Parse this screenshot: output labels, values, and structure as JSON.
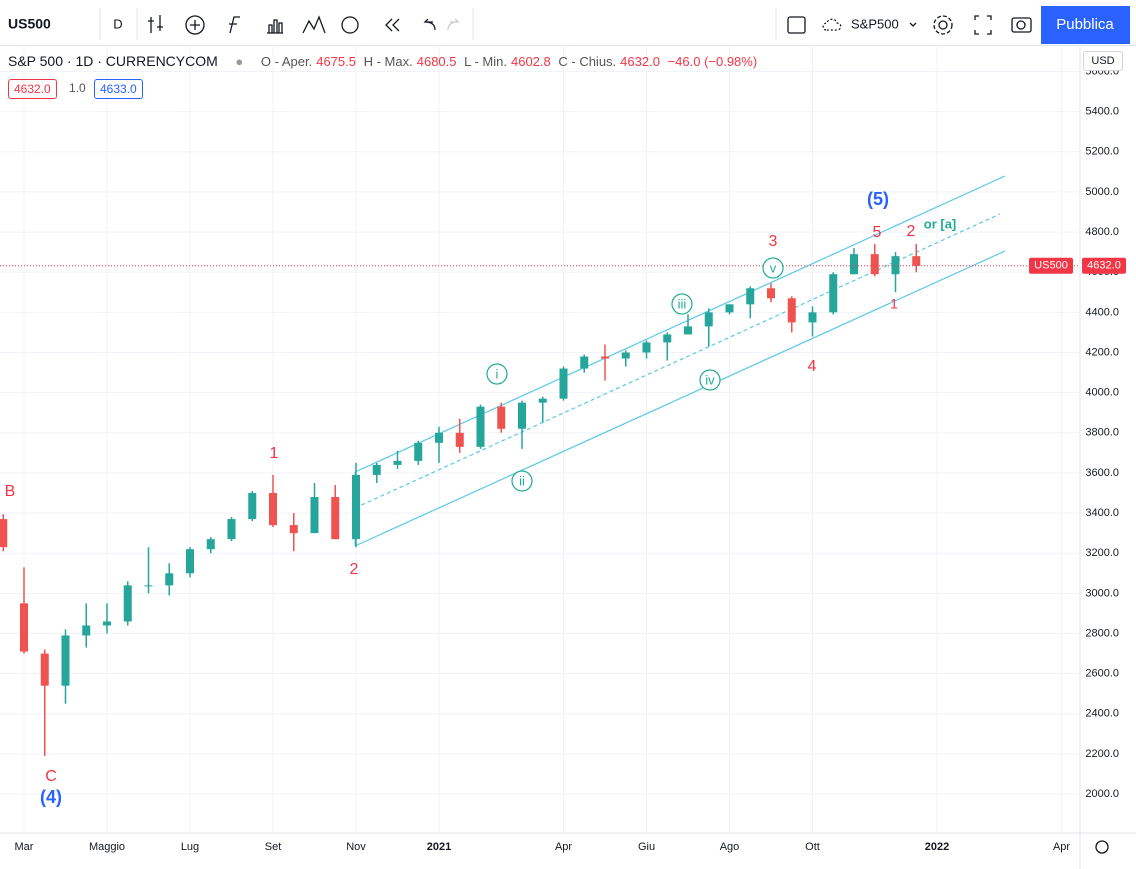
{
  "toolbar": {
    "symbol": "US500",
    "interval": "D",
    "compare": "S&P500",
    "publish": "Pubblica"
  },
  "legend": {
    "title": "S&P 500 · 1D · CURRENCYCOM",
    "open_label": "O - Aper.",
    "open": "4675.5",
    "high_label": "H - Max.",
    "high": "4680.5",
    "low_label": "L - Min.",
    "low": "4602.8",
    "close_label": "C - Chius.",
    "close": "4632.0",
    "change": "−46.0 (−0.98%)",
    "bid": "4632.0",
    "spread": "1.0",
    "ask": "4633.0"
  },
  "currency": "USD",
  "chart_data": {
    "type": "ohlc",
    "categories": [
      null,
      "Mar",
      null,
      null,
      null,
      "Maggio",
      null,
      null,
      null,
      "Lug",
      null,
      null,
      null,
      "Set",
      null,
      null,
      null,
      "Nov",
      null,
      null,
      null,
      "2021",
      null,
      null,
      null,
      null,
      null,
      "Apr",
      null,
      null,
      null,
      "Giu",
      null,
      null,
      null,
      "Ago",
      null,
      null,
      null,
      "Ott",
      null,
      null,
      null,
      null,
      null,
      "2022",
      null,
      null,
      null,
      null,
      null,
      "Apr"
    ],
    "open": [
      3370,
      2950,
      2700,
      2540,
      2790,
      2840,
      2860,
      3040,
      3040,
      3100,
      3220,
      3270,
      3370,
      3500,
      3340,
      3300,
      3480,
      3270,
      3590,
      3640,
      3660,
      3750,
      3800,
      3730,
      3930,
      3820,
      3950,
      3970,
      4120,
      4180,
      4170,
      4200,
      4250,
      4290,
      4330,
      4400,
      4440,
      4520,
      4470,
      4350,
      4400,
      4590,
      4690,
      4590,
      4680,
      null,
      null,
      null,
      null,
      null,
      null,
      null
    ],
    "high": [
      3395,
      3130,
      2720,
      2820,
      2950,
      2950,
      3060,
      3230,
      3150,
      3230,
      3280,
      3380,
      3510,
      3590,
      3400,
      3550,
      3540,
      3650,
      3650,
      3710,
      3760,
      3830,
      3870,
      3940,
      3950,
      3960,
      3980,
      4130,
      4190,
      4240,
      4210,
      4260,
      4300,
      4390,
      4420,
      4440,
      4530,
      4545,
      4480,
      4430,
      4600,
      4720,
      4740,
      4700,
      4740,
      null,
      null,
      null,
      null,
      null,
      null,
      null
    ],
    "low": [
      3210,
      2700,
      2190,
      2450,
      2730,
      2800,
      2840,
      3000,
      2990,
      3080,
      3200,
      3260,
      3360,
      3330,
      3210,
      3300,
      3270,
      3230,
      3550,
      3620,
      3640,
      3650,
      3700,
      3720,
      3800,
      3720,
      3850,
      3960,
      4100,
      4060,
      4130,
      4170,
      4160,
      4290,
      4230,
      4390,
      4370,
      4450,
      4300,
      4280,
      4390,
      4590,
      4580,
      4500,
      4600,
      null,
      null,
      null,
      null,
      null,
      null,
      null
    ],
    "close": [
      3230,
      2710,
      2540,
      2790,
      2840,
      2860,
      3040,
      3040,
      3100,
      3220,
      3270,
      3370,
      3500,
      3340,
      3300,
      3480,
      3270,
      3590,
      3640,
      3660,
      3750,
      3800,
      3730,
      3930,
      3820,
      3950,
      3970,
      4120,
      4180,
      4170,
      4200,
      4250,
      4290,
      4330,
      4400,
      4440,
      4520,
      4470,
      4350,
      4400,
      4590,
      4690,
      4590,
      4680,
      4632,
      null,
      null,
      null,
      null,
      null,
      null,
      null
    ],
    "up_color": "#26a69a",
    "down_color": "#ef5350",
    "ylim": [
      1806,
      5732
    ],
    "yticks": [
      {
        "value": 2000,
        "label": "2000.0"
      },
      {
        "value": 2200,
        "label": "2200.0"
      },
      {
        "value": 2400,
        "label": "2400.0"
      },
      {
        "value": 2600,
        "label": "2600.0"
      },
      {
        "value": 2800,
        "label": "2800.0"
      },
      {
        "value": 3000,
        "label": "3000.0"
      },
      {
        "value": 3200,
        "label": "3200.0"
      },
      {
        "value": 3400,
        "label": "3400.0"
      },
      {
        "value": 3600,
        "label": "3600.0"
      },
      {
        "value": 3800,
        "label": "3800.0"
      },
      {
        "value": 4000,
        "label": "4000.0"
      },
      {
        "value": 4200,
        "label": "4200.0"
      },
      {
        "value": 4400,
        "label": "4400.0"
      },
      {
        "value": 4600,
        "label": "4600.0"
      },
      {
        "value": 4800,
        "label": "4800.0"
      },
      {
        "value": 5000,
        "label": "5000.0"
      },
      {
        "value": 5200,
        "label": "5200.0"
      },
      {
        "value": 5400,
        "label": "5400.0"
      },
      {
        "value": 5600,
        "label": "5600.0"
      }
    ],
    "grid": true,
    "last_price": {
      "value": 4632,
      "label": "4632.0"
    },
    "price_badge": "US500",
    "annotations": [
      "B",
      "C",
      "(4)",
      "1",
      "2",
      "i",
      "ii",
      "iii",
      "iv",
      "v",
      "3",
      "4",
      "(5)",
      "5",
      "2",
      "1",
      "or [a]"
    ]
  }
}
